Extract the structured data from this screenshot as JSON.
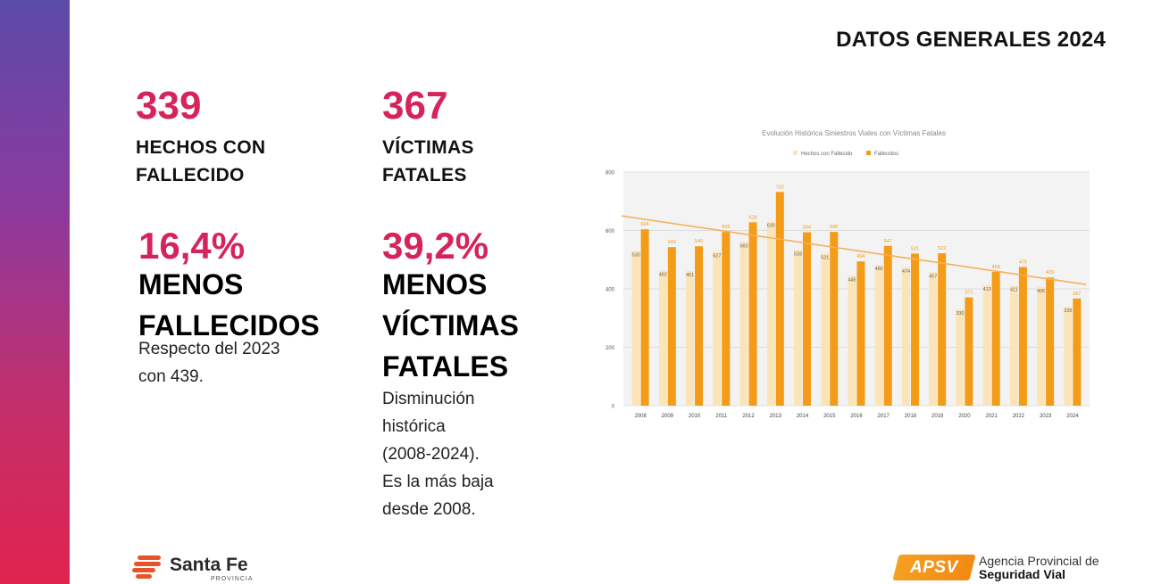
{
  "header": {
    "title": "DATOS GENERALES 2024"
  },
  "stats": {
    "hechos": {
      "number": "339",
      "caption": [
        "HECHOS CON",
        "FALLECIDO"
      ]
    },
    "victimas": {
      "number": "367",
      "caption": [
        "VÍCTIMAS",
        "FATALES"
      ]
    },
    "menos_fallecidos": {
      "percent": "16,4%",
      "heading": [
        "MENOS",
        "FALLECIDOS"
      ],
      "body": [
        "Respecto del 2023",
        "con 439."
      ]
    },
    "menos_victimas": {
      "percent": "39,2%",
      "heading": [
        "MENOS",
        "VÍCTIMAS",
        "FATALES"
      ],
      "body": [
        "Disminución",
        "histórica",
        "(2008-2024).",
        "Es la más baja",
        "desde 2008."
      ]
    }
  },
  "colors": {
    "accent": "#d6245a",
    "bar_hechos": "#fbe5b8",
    "bar_fallecidos": "#f49b17",
    "trend": "#f6b05a"
  },
  "footer": {
    "santafe": {
      "name": "Santa Fe",
      "sub": "PROVINCIA",
      "icon": "santafe-logo-icon"
    },
    "apsv": {
      "badge": "APSV",
      "line1": "Agencia Provincial de",
      "line2": "Seguridad Vial"
    }
  },
  "chart_data": {
    "type": "bar",
    "title": "Evolución Histórica Siniestros Viales con Víctimas Fatales",
    "legend_position": "top",
    "grid": true,
    "ylim": [
      0,
      800
    ],
    "yticks": [
      0,
      200,
      400,
      600,
      800
    ],
    "categories": [
      "2008",
      "2009",
      "2010",
      "2011",
      "2012",
      "2013",
      "2014",
      "2015",
      "2016",
      "2017",
      "2018",
      "2019",
      "2020",
      "2021",
      "2022",
      "2023",
      "2024"
    ],
    "series": [
      {
        "name": "Hechos con Fallecido",
        "values": [
          530,
          462,
          461,
          527,
          560,
          630,
          533,
          521,
          445,
          482,
          474,
          457,
          330,
          412,
          411,
          406,
          339
        ]
      },
      {
        "name": "Fallecidos",
        "values": [
          604,
          543,
          546,
          595,
          628,
          732,
          594,
          595,
          494,
          547,
          521,
          522,
          371,
          458,
          475,
          439,
          367
        ]
      }
    ],
    "trend_line": {
      "from": 650,
      "to": 415
    }
  }
}
